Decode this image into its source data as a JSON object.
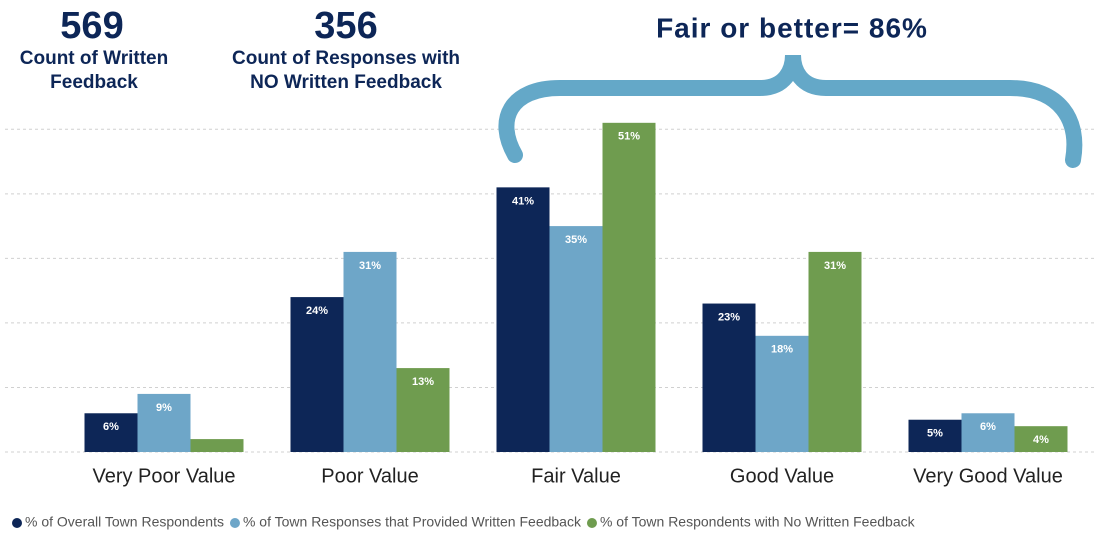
{
  "chart_data": {
    "type": "bar",
    "annotations": [
      "569",
      "Count of Written Feedback",
      "356",
      "Count of Responses with NO Written Feedback",
      "Fair or better= 86%"
    ],
    "categories": [
      "Very Poor Value",
      "Poor Value",
      "Fair Value",
      "Good Value",
      "Very Good Value"
    ],
    "series": [
      {
        "name": "% of Overall Town Respondents",
        "color": "#0d2657",
        "values": [
          6,
          24,
          41,
          23,
          5
        ],
        "value_labels": [
          "6%",
          "24%",
          "41%",
          "23%",
          "5%"
        ]
      },
      {
        "name": "% of Town Responses that Provided Written Feedback",
        "color": "#6ea6c8",
        "values": [
          9,
          31,
          35,
          18,
          6
        ],
        "value_labels": [
          "9%",
          "31%",
          "35%",
          "18%",
          "6%"
        ]
      },
      {
        "name": "% of Town Respondents with No Written Feedback",
        "color": "#6f9c4f",
        "values": [
          2,
          13,
          51,
          31,
          4
        ],
        "value_labels": [
          null,
          "13%",
          "51%",
          "31%",
          "4%"
        ]
      }
    ],
    "ylim": [
      0,
      55
    ],
    "yticks": [
      0,
      10,
      20,
      30,
      40,
      50
    ],
    "grid": true
  }
}
